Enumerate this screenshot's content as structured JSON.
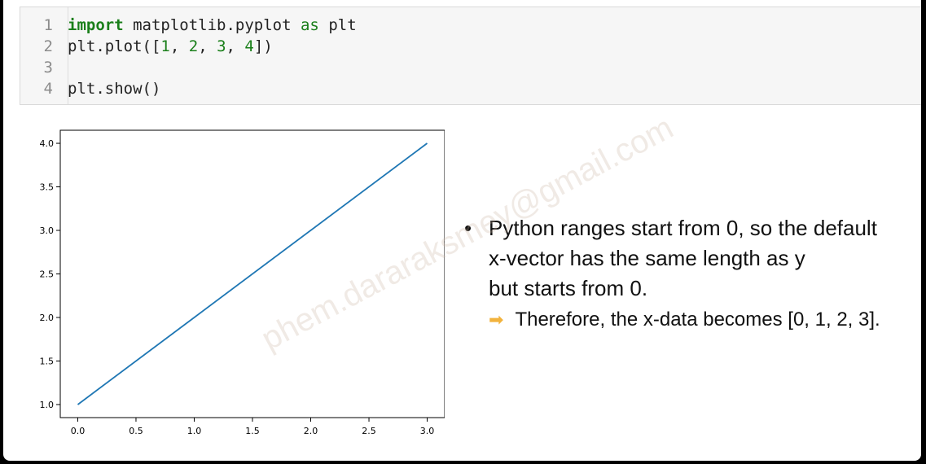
{
  "code_cell": {
    "lines": [
      {
        "num": "1",
        "tokens": [
          {
            "t": "import",
            "c": "kw"
          },
          {
            "t": " matplotlib.pyplot ",
            "c": ""
          },
          {
            "t": "as",
            "c": "kw2"
          },
          {
            "t": " plt",
            "c": ""
          }
        ]
      },
      {
        "num": "2",
        "tokens": [
          {
            "t": "plt.plot([",
            "c": ""
          },
          {
            "t": "1",
            "c": "num"
          },
          {
            "t": ", ",
            "c": ""
          },
          {
            "t": "2",
            "c": "num"
          },
          {
            "t": ", ",
            "c": ""
          },
          {
            "t": "3",
            "c": "num"
          },
          {
            "t": ", ",
            "c": ""
          },
          {
            "t": "4",
            "c": "num"
          },
          {
            "t": "])",
            "c": ""
          }
        ]
      },
      {
        "num": "3",
        "tokens": []
      },
      {
        "num": "4",
        "tokens": [
          {
            "t": "plt.show()",
            "c": ""
          }
        ]
      }
    ]
  },
  "chart_data": {
    "type": "line",
    "x": [
      0,
      1,
      2,
      3
    ],
    "series": [
      {
        "values": [
          1,
          2,
          3,
          4
        ],
        "color": "#1f77b4"
      }
    ],
    "xlim": [
      -0.15,
      3.15
    ],
    "ylim": [
      0.85,
      4.15
    ],
    "xticks": [
      "0.0",
      "0.5",
      "1.0",
      "1.5",
      "2.0",
      "2.5",
      "3.0"
    ],
    "xtick_values": [
      0,
      0.5,
      1,
      1.5,
      2,
      2.5,
      3
    ],
    "yticks": [
      "1.0",
      "1.5",
      "2.0",
      "2.5",
      "3.0",
      "3.5",
      "4.0"
    ],
    "ytick_values": [
      1,
      1.5,
      2,
      2.5,
      3,
      3.5,
      4
    ],
    "grid": false
  },
  "notes": {
    "bullet_lines": [
      "Python ranges start from 0, so the default",
      "x-vector has the same length as y",
      "but starts from 0."
    ],
    "sub_point": "Therefore, the x-data becomes [0, 1, 2, 3].",
    "bullet_symbol": "•",
    "arrow_symbol": "➡"
  },
  "watermark": "phem.dararaksmey@gmail.com",
  "colors": {
    "line": "#1f77b4",
    "arrow": "#f2b33d"
  }
}
